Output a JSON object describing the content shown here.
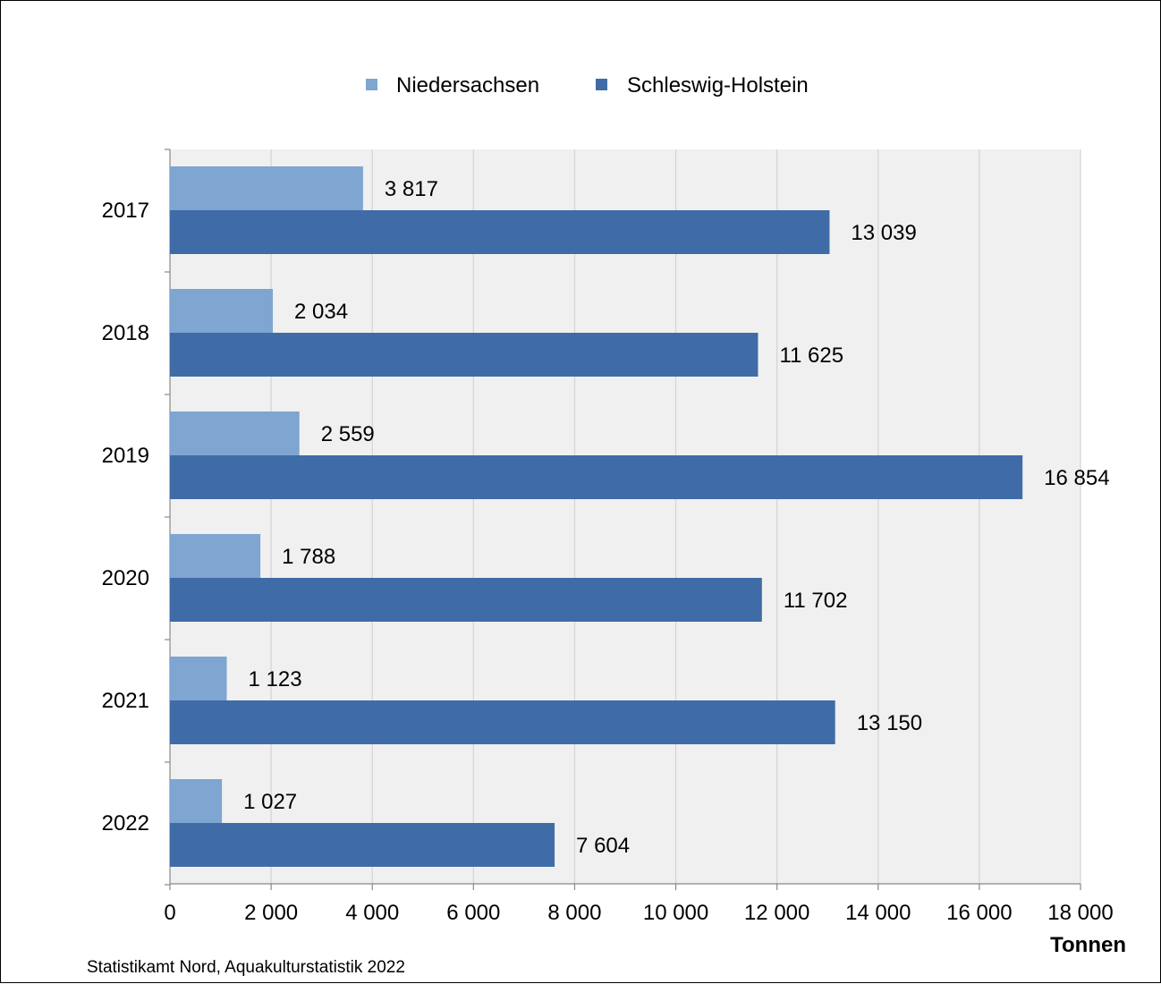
{
  "chart_data": {
    "type": "bar",
    "orientation": "horizontal",
    "categories": [
      "2017",
      "2018",
      "2019",
      "2020",
      "2021",
      "2022"
    ],
    "series": [
      {
        "name": "Niedersachsen",
        "color": "#7fa5d1",
        "values": [
          3817,
          2034,
          2559,
          1788,
          1123,
          1027
        ],
        "labels": [
          "3 817",
          "2 034",
          "2 559",
          "1 788",
          "1 123",
          "1 027"
        ]
      },
      {
        "name": "Schleswig-Holstein",
        "color": "#3f6ca6",
        "values": [
          13039,
          11625,
          16854,
          11702,
          13150,
          7604
        ],
        "labels": [
          "13 039",
          "11 625",
          "16 854",
          "11 702",
          "13 150",
          "7 604"
        ]
      }
    ],
    "xlim": [
      0,
      18000
    ],
    "xticks": [
      0,
      2000,
      4000,
      6000,
      8000,
      10000,
      12000,
      14000,
      16000,
      18000
    ],
    "xtick_labels": [
      "0",
      "2 000",
      "4 000",
      "6 000",
      "8 000",
      "10 000",
      "12 000",
      "14 000",
      "16 000",
      "18 000"
    ],
    "xlabel": "Tonnen",
    "grid": "vertical",
    "legend_position": "top-center",
    "plot_background": "#f0f0f0"
  },
  "source": "Statistikamt  Nord, Aquakulturstatistik  2022"
}
